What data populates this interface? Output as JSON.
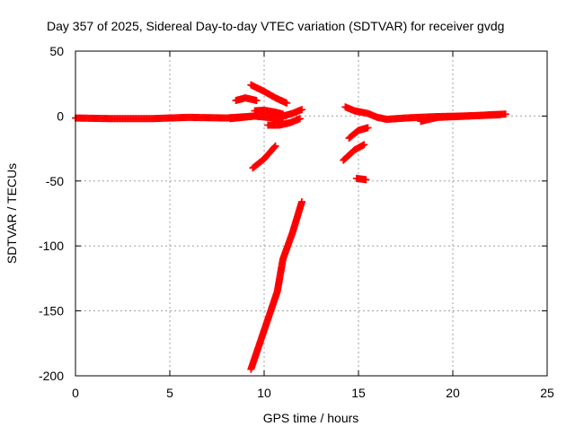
{
  "chart_data": {
    "type": "scatter",
    "title": "Day 357 of 2025, Sidereal Day-to-day VTEC variation (SDTVAR) for receiver gvdg",
    "xlabel": "GPS time / hours",
    "ylabel": "SDTVAR / TECUs",
    "xlim": [
      0,
      25
    ],
    "ylim": [
      -200,
      50
    ],
    "xticks": [
      0,
      5,
      10,
      15,
      20,
      25
    ],
    "yticks": [
      -200,
      -150,
      -100,
      -50,
      0,
      50
    ],
    "xtick_labels": [
      "0",
      "5",
      "10",
      "15",
      "20",
      "25"
    ],
    "ytick_labels": [
      "-200",
      "-150",
      "-100",
      "-50",
      "0",
      "50"
    ],
    "grid": true,
    "marker": "plus",
    "series_color": "#ff0000",
    "tracks": [
      {
        "points": [
          [
            0.0,
            -1.5
          ],
          [
            2.0,
            -2.0
          ],
          [
            4.0,
            -2.0
          ],
          [
            6.0,
            -1.0
          ],
          [
            8.0,
            -1.5
          ],
          [
            9.5,
            0.0
          ],
          [
            10.5,
            -1.5
          ],
          [
            11.0,
            -2.0
          ]
        ]
      },
      {
        "points": [
          [
            8.2,
            -2.0
          ],
          [
            9.5,
            0.0
          ]
        ]
      },
      {
        "points": [
          [
            8.5,
            12.0
          ],
          [
            9.0,
            14.0
          ],
          [
            9.6,
            12.0
          ]
        ]
      },
      {
        "points": [
          [
            9.3,
            24.0
          ],
          [
            10.0,
            19.0
          ],
          [
            10.6,
            14.0
          ],
          [
            11.2,
            10.0
          ]
        ]
      },
      {
        "points": [
          [
            9.5,
            4.0
          ],
          [
            10.0,
            4.5
          ],
          [
            10.6,
            3.0
          ],
          [
            11.0,
            1.5
          ]
        ]
      },
      {
        "points": [
          [
            10.3,
            3.0
          ],
          [
            11.0,
            0.0
          ],
          [
            11.5,
            2.0
          ],
          [
            12.0,
            5.0
          ]
        ]
      },
      {
        "points": [
          [
            10.2,
            -7.0
          ],
          [
            10.8,
            -7.0
          ],
          [
            11.4,
            -5.0
          ],
          [
            11.9,
            -2.0
          ]
        ]
      },
      {
        "points": [
          [
            9.4,
            -40.0
          ],
          [
            10.0,
            -33.0
          ],
          [
            10.6,
            -23.0
          ]
        ]
      },
      {
        "points": [
          [
            9.3,
            -195.0
          ],
          [
            10.0,
            -165.0
          ],
          [
            10.7,
            -135.0
          ],
          [
            11.0,
            -110.0
          ],
          [
            11.5,
            -90.0
          ],
          [
            12.0,
            -66.0
          ]
        ]
      },
      {
        "points": [
          [
            14.3,
            7.0
          ],
          [
            14.8,
            4.0
          ],
          [
            15.5,
            2.0
          ],
          [
            16.0,
            -1.0
          ],
          [
            16.5,
            -2.5
          ],
          [
            17.5,
            -1.5
          ],
          [
            19.0,
            -0.5
          ],
          [
            20.5,
            0.0
          ],
          [
            21.5,
            0.5
          ],
          [
            22.5,
            1.0
          ]
        ]
      },
      {
        "points": [
          [
            18.3,
            -4.0
          ],
          [
            19.2,
            -1.0
          ],
          [
            20.0,
            -0.5
          ],
          [
            20.8,
            0.0
          ],
          [
            21.5,
            0.5
          ],
          [
            22.0,
            1.0
          ],
          [
            22.8,
            1.5
          ]
        ]
      },
      {
        "points": [
          [
            14.5,
            -17.0
          ],
          [
            15.0,
            -11.0
          ],
          [
            15.5,
            -9.0
          ]
        ]
      },
      {
        "points": [
          [
            14.2,
            -34.0
          ],
          [
            14.8,
            -26.0
          ],
          [
            15.3,
            -22.0
          ]
        ]
      },
      {
        "points": [
          [
            14.9,
            -48.0
          ],
          [
            15.4,
            -49.0
          ]
        ]
      }
    ]
  }
}
